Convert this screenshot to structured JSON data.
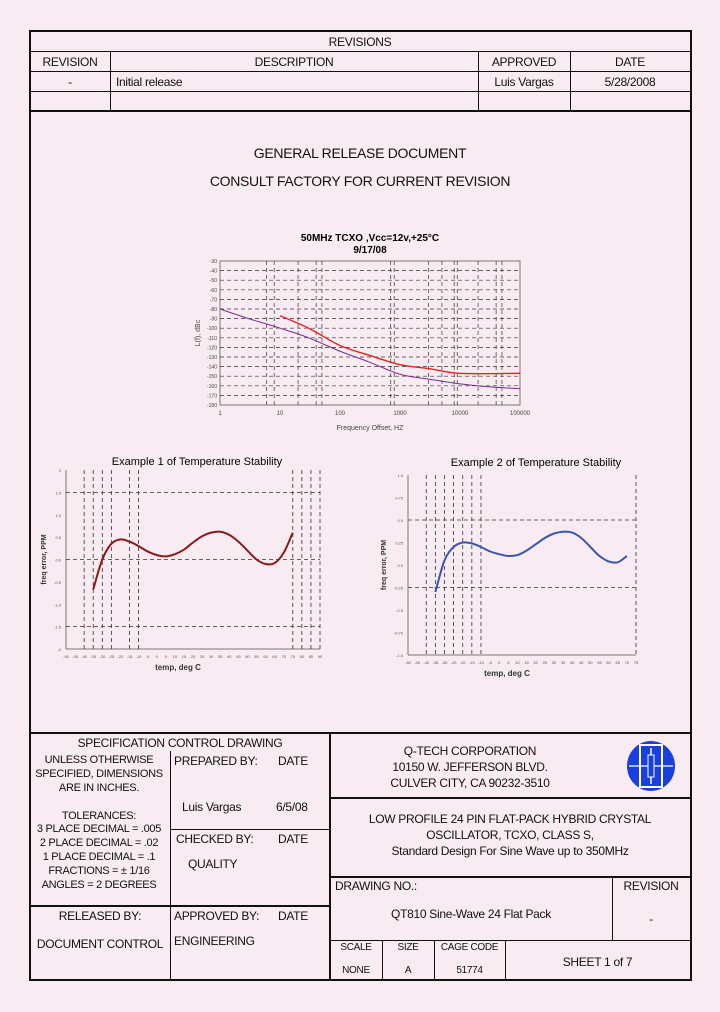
{
  "revisions": {
    "title": "REVISIONS",
    "headers": [
      "REVISION",
      "DESCRIPTION",
      "APPROVED",
      "DATE"
    ],
    "rows": [
      {
        "revision": "-",
        "description": "Initial release",
        "approved": "Luis Vargas",
        "date": "5/28/2008"
      },
      {
        "revision": "",
        "description": "",
        "approved": "",
        "date": ""
      }
    ]
  },
  "notice": {
    "line1": "GENERAL RELEASE DOCUMENT",
    "line2": "CONSULT FACTORY FOR CURRENT REVISION"
  },
  "chart_data": [
    {
      "type": "line",
      "title": "50MHz TCXO ,Vcc=12v,+25°C",
      "subtitle": "9/17/08",
      "xlabel": "Frequency Offset, HZ",
      "ylabel": "L(f), dBc",
      "xscale": "log",
      "xlim": [
        1,
        100000
      ],
      "ylim": [
        -180,
        -30
      ],
      "xticks": [
        "1",
        "10",
        "100",
        "1000",
        "10000",
        "100000"
      ],
      "yticks": [
        "-30",
        "-40",
        "-50",
        "-60",
        "-70",
        "-80",
        "-90",
        "-100",
        "-110",
        "-120",
        "-130",
        "-140",
        "-150",
        "-160",
        "-170",
        "-180"
      ],
      "grid": true,
      "series": [
        {
          "color": "#7a2a8c",
          "x": [
            1,
            3,
            10,
            30,
            100,
            300,
            1000,
            3000,
            10000,
            30000,
            100000
          ],
          "y": [
            -80,
            -90,
            -100,
            -110,
            -124,
            -135,
            -148,
            -153,
            -158,
            -161,
            -163
          ]
        },
        {
          "color": "#e8231e",
          "x": [
            10,
            30,
            100,
            300,
            1000,
            3000,
            10000,
            100000
          ],
          "y": [
            -87,
            -100,
            -118,
            -128,
            -138,
            -142,
            -147,
            -147
          ]
        }
      ]
    },
    {
      "type": "line",
      "title": "Example 1 of Temperature Stability",
      "xlabel": "temp, deg C",
      "ylabel": "freq error, PPM",
      "xlim": [
        -50,
        80
      ],
      "ylim": [
        -2,
        2
      ],
      "xticks": [
        "-50",
        "-45",
        "-40",
        "-35",
        "-30",
        "-25",
        "-20",
        "-15",
        "-10",
        "-5",
        "0",
        "5",
        "10",
        "15",
        "20",
        "25",
        "30",
        "35",
        "40",
        "45",
        "50",
        "55",
        "60",
        "65",
        "70",
        "75",
        "80",
        "85",
        "90"
      ],
      "yticks": [
        "2",
        "1.5",
        "1.0",
        "0.5",
        "0.0",
        "-0.5",
        "-1.0",
        "-1.5",
        "-2"
      ],
      "grid": true,
      "series": [
        {
          "color": "#8b1a1a",
          "x": [
            -35,
            -30,
            -25,
            -20,
            -15,
            -10,
            -5,
            0,
            5,
            10,
            15,
            20,
            25,
            30,
            35,
            40,
            45,
            50,
            55,
            60,
            65,
            70,
            75
          ],
          "y": [
            -0.67,
            0.0,
            0.35,
            0.45,
            0.4,
            0.3,
            0.18,
            0.1,
            0.07,
            0.12,
            0.22,
            0.38,
            0.52,
            0.6,
            0.62,
            0.55,
            0.4,
            0.2,
            0.0,
            -0.1,
            -0.08,
            0.15,
            0.6
          ]
        }
      ]
    },
    {
      "type": "line",
      "title": "Example 2 of Temperature Stability",
      "xlabel": "temp, deg C",
      "ylabel": "freq error, PPM",
      "xlim": [
        -50,
        75
      ],
      "ylim": [
        -1,
        1
      ],
      "xticks": [
        "-50",
        "-45",
        "-40",
        "-35",
        "-30",
        "-25",
        "-20",
        "-15",
        "-10",
        "-5",
        "0",
        "5",
        "10",
        "15",
        "20",
        "25",
        "30",
        "35",
        "40",
        "45",
        "50",
        "55",
        "60",
        "65",
        "70",
        "75"
      ],
      "yticks": [
        "1.0",
        "0.75",
        "0.5",
        "0.25",
        "0.0",
        "-0.25",
        "-0.5",
        "-0.75",
        "-1.0"
      ],
      "grid": true,
      "series": [
        {
          "color": "#3a55b0",
          "x": [
            -35,
            -30,
            -25,
            -20,
            -15,
            -10,
            -5,
            0,
            5,
            10,
            15,
            20,
            25,
            30,
            35,
            40,
            45,
            50,
            55,
            60,
            65,
            70
          ],
          "y": [
            -0.3,
            0.05,
            0.2,
            0.25,
            0.24,
            0.2,
            0.15,
            0.12,
            0.1,
            0.11,
            0.16,
            0.23,
            0.3,
            0.35,
            0.37,
            0.36,
            0.3,
            0.2,
            0.1,
            0.04,
            0.03,
            0.1
          ]
        }
      ]
    }
  ],
  "title_block": {
    "spec_title": "SPECIFICATION CONTROL DRAWING",
    "notes": [
      "UNLESS OTHERWISE",
      "SPECIFIED, DIMENSIONS",
      "ARE IN INCHES."
    ],
    "tolerances_title": "TOLERANCES:",
    "tolerances": [
      "3 PLACE DECIMAL = .005",
      "2 PLACE DECIMAL = .02",
      "1 PLACE DECIMAL = .1",
      "FRACTIONS = ± 1/16",
      "ANGLES = 2 DEGREES"
    ],
    "prepared_by_label": "PREPARED BY:",
    "prepared_by": "Luis Vargas",
    "prepared_date": "6/5/08",
    "checked_by_label": "CHECKED BY:",
    "checked_by": "QUALITY",
    "released_by_label": "RELEASED BY:",
    "released_by": "DOCUMENT CONTROL",
    "approved_by_label": "APPROVED BY:",
    "approved_by": "ENGINEERING",
    "date_label": "DATE",
    "company": [
      "Q-TECH CORPORATION",
      "10150 W. JEFFERSON BLVD.",
      "CULVER CITY, CA  90232-3510"
    ],
    "logo_color": "#1a3fe0",
    "description": [
      "LOW PROFILE 24 PIN FLAT-PACK HYBRID CRYSTAL",
      "OSCILLATOR, TCXO, CLASS S,",
      "Standard Design For Sine Wave up to 350MHz"
    ],
    "drawing_no_label": "DRAWING NO.:",
    "drawing_no": "QT810 Sine-Wave 24 Flat Pack",
    "revision_label": "REVISION",
    "revision": "-",
    "scale_label": "SCALE",
    "scale": "NONE",
    "size_label": "SIZE",
    "size": "A",
    "cage_label": "CAGE CODE",
    "cage": "51774",
    "sheet": "SHEET 1 of  7"
  }
}
